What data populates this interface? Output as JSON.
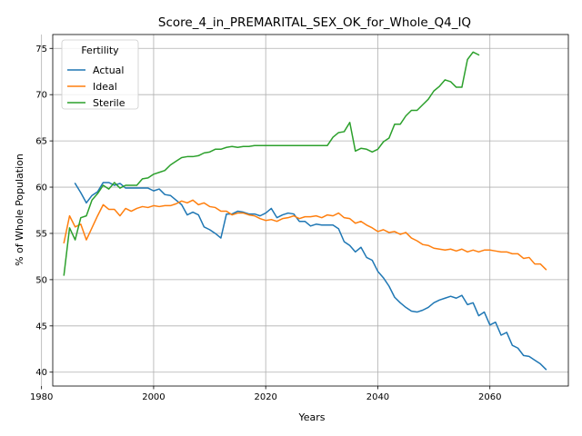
{
  "chart_data": {
    "type": "line",
    "title": "Score_4_in_PREMARITAL_SEX_OK_for_Whole_Q4_IQ",
    "xlabel": "Years",
    "ylabel": "% of Whole Population",
    "xlim": [
      1982,
      2074
    ],
    "ylim": [
      38.5,
      76.5
    ],
    "xticks": [
      1980,
      2000,
      2020,
      2040,
      2060
    ],
    "yticks": [
      40,
      45,
      50,
      55,
      60,
      65,
      70,
      75
    ],
    "grid": true,
    "legend": {
      "title": "Fertility",
      "placement": "top-left"
    },
    "series": [
      {
        "name": "Actual",
        "color": "#1f77b4",
        "x": [
          1986,
          1987,
          1988,
          1989,
          1990,
          1991,
          1992,
          1993,
          1994,
          1995,
          1996,
          1997,
          1998,
          1999,
          2000,
          2001,
          2002,
          2003,
          2004,
          2005,
          2006,
          2007,
          2008,
          2009,
          2010,
          2011,
          2012,
          2013,
          2014,
          2015,
          2016,
          2017,
          2018,
          2019,
          2020,
          2021,
          2022,
          2023,
          2024,
          2025,
          2026,
          2027,
          2028,
          2029,
          2030,
          2031,
          2032,
          2033,
          2034,
          2035,
          2036,
          2037,
          2038,
          2039,
          2040,
          2041,
          2042,
          2043,
          2044,
          2045,
          2046,
          2047,
          2048,
          2049,
          2050,
          2051,
          2052,
          2053,
          2054,
          2055,
          2056,
          2057,
          2058,
          2059,
          2060,
          2061,
          2062,
          2063,
          2064,
          2065,
          2066,
          2067,
          2068,
          2069,
          2070
        ],
        "values": [
          60.4,
          59.4,
          58.3,
          59.1,
          59.5,
          60.5,
          60.5,
          60.2,
          60.4,
          59.9,
          59.9,
          59.9,
          59.9,
          59.9,
          59.6,
          59.8,
          59.2,
          59.1,
          58.6,
          58.1,
          57.0,
          57.3,
          57.0,
          55.7,
          55.4,
          55.0,
          54.5,
          57.1,
          57.1,
          57.4,
          57.3,
          57.1,
          57.1,
          56.9,
          57.2,
          57.7,
          56.7,
          57.0,
          57.2,
          57.1,
          56.3,
          56.3,
          55.8,
          56.0,
          55.9,
          55.9,
          55.9,
          55.5,
          54.1,
          53.7,
          53.0,
          53.5,
          52.4,
          52.1,
          50.9,
          50.2,
          49.3,
          48.1,
          47.5,
          47.0,
          46.6,
          46.5,
          46.7,
          47.0,
          47.5,
          47.8,
          48.0,
          48.2,
          48.0,
          48.3,
          47.3,
          47.5,
          46.1,
          46.5,
          45.1,
          45.4,
          44.0,
          44.3,
          42.9,
          42.6,
          41.8,
          41.7,
          41.3,
          40.9,
          40.3
        ]
      },
      {
        "name": "Ideal",
        "color": "#ff7f0e",
        "x": [
          1984,
          1985,
          1986,
          1987,
          1988,
          1989,
          1990,
          1991,
          1992,
          1993,
          1994,
          1995,
          1996,
          1997,
          1998,
          1999,
          2000,
          2001,
          2002,
          2003,
          2004,
          2005,
          2006,
          2007,
          2008,
          2009,
          2010,
          2011,
          2012,
          2013,
          2014,
          2015,
          2016,
          2017,
          2018,
          2019,
          2020,
          2021,
          2022,
          2023,
          2024,
          2025,
          2026,
          2027,
          2028,
          2029,
          2030,
          2031,
          2032,
          2033,
          2034,
          2035,
          2036,
          2037,
          2038,
          2039,
          2040,
          2041,
          2042,
          2043,
          2044,
          2045,
          2046,
          2047,
          2048,
          2049,
          2050,
          2051,
          2052,
          2053,
          2054,
          2055,
          2056,
          2057,
          2058,
          2059,
          2060,
          2061,
          2062,
          2063,
          2064,
          2065,
          2066,
          2067,
          2068,
          2069,
          2070
        ],
        "values": [
          54.0,
          56.9,
          55.7,
          56.0,
          54.3,
          55.6,
          56.9,
          58.1,
          57.6,
          57.6,
          56.9,
          57.7,
          57.4,
          57.7,
          57.9,
          57.8,
          58.0,
          57.9,
          58.0,
          58.0,
          58.2,
          58.5,
          58.3,
          58.6,
          58.1,
          58.3,
          57.9,
          57.8,
          57.4,
          57.4,
          57.0,
          57.2,
          57.2,
          57.0,
          56.9,
          56.6,
          56.4,
          56.5,
          56.3,
          56.6,
          56.7,
          56.9,
          56.6,
          56.8,
          56.8,
          56.9,
          56.7,
          57.0,
          56.9,
          57.2,
          56.7,
          56.6,
          56.1,
          56.3,
          55.9,
          55.6,
          55.2,
          55.4,
          55.1,
          55.2,
          54.9,
          55.1,
          54.5,
          54.2,
          53.8,
          53.7,
          53.4,
          53.3,
          53.2,
          53.3,
          53.1,
          53.3,
          53.0,
          53.2,
          53.0,
          53.2,
          53.2,
          53.1,
          53.0,
          53.0,
          52.8,
          52.8,
          52.3,
          52.4,
          51.7,
          51.7,
          51.1
        ]
      },
      {
        "name": "Sterile",
        "color": "#2ca02c",
        "x": [
          1984,
          1985,
          1986,
          1987,
          1988,
          1989,
          1990,
          1991,
          1992,
          1993,
          1994,
          1995,
          1996,
          1997,
          1998,
          1999,
          2000,
          2001,
          2002,
          2003,
          2004,
          2005,
          2006,
          2007,
          2008,
          2009,
          2010,
          2011,
          2012,
          2013,
          2014,
          2015,
          2016,
          2017,
          2018,
          2019,
          2020,
          2021,
          2022,
          2023,
          2024,
          2025,
          2026,
          2027,
          2028,
          2029,
          2030,
          2031,
          2032,
          2033,
          2034,
          2035,
          2036,
          2037,
          2038,
          2039,
          2040,
          2041,
          2042,
          2043,
          2044,
          2045,
          2046,
          2047,
          2048,
          2049,
          2050,
          2051,
          2052,
          2053,
          2054,
          2055,
          2056,
          2057,
          2058
        ],
        "values": [
          50.5,
          55.6,
          54.3,
          56.7,
          56.9,
          58.6,
          59.3,
          60.2,
          59.8,
          60.5,
          59.9,
          60.2,
          60.2,
          60.2,
          60.9,
          61.0,
          61.4,
          61.6,
          61.8,
          62.4,
          62.8,
          63.2,
          63.3,
          63.3,
          63.4,
          63.7,
          63.8,
          64.1,
          64.1,
          64.3,
          64.4,
          64.3,
          64.4,
          64.4,
          64.5,
          64.5,
          64.5,
          64.5,
          64.5,
          64.5,
          64.5,
          64.5,
          64.5,
          64.5,
          64.5,
          64.5,
          64.5,
          64.5,
          65.4,
          65.9,
          66.0,
          67.0,
          63.9,
          64.2,
          64.1,
          63.8,
          64.1,
          64.9,
          65.3,
          66.8,
          66.8,
          67.7,
          68.3,
          68.3,
          68.9,
          69.5,
          70.4,
          70.9,
          71.6,
          71.4,
          70.8,
          70.8,
          73.8,
          74.6,
          74.3
        ]
      }
    ]
  }
}
